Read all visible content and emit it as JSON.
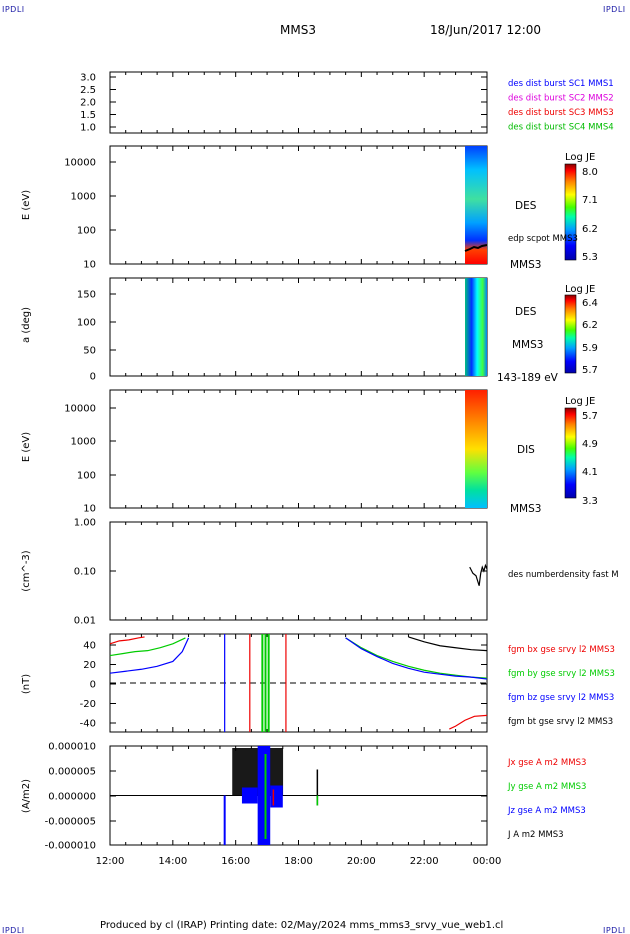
{
  "header": {
    "corner_label": "IPDLI",
    "spacecraft": "MMS3",
    "datetime": "18/Jun/2017 12:00"
  },
  "footer": {
    "text": "Produced by cl (IRAP)   Printing date: 02/May/2024   mms_mms3_srvy_vue_web1.cl"
  },
  "colors": {
    "mms1": "#0000ff",
    "mms2": "#dd00dd",
    "mms3": "#ee0000",
    "mms4": "#00bb00",
    "bx": "#ee0000",
    "by": "#00cc00",
    "bz": "#0000ff",
    "bt": "#000000"
  },
  "chart_data": [
    {
      "type": "line",
      "panel": "burst-flags",
      "ylabel": "",
      "yticks": [
        "3.0",
        "2.5",
        "2.0",
        "1.5",
        "1.0"
      ],
      "ylim": [
        0.8,
        3.2
      ],
      "legend": [
        {
          "label": "des dist burst SC1 MMS1",
          "color": "#0000ff"
        },
        {
          "label": "des dist burst SC2 MMS2",
          "color": "#dd00dd"
        },
        {
          "label": "des dist burst SC3 MMS3",
          "color": "#ee0000"
        },
        {
          "label": "des dist burst SC4 MMS4",
          "color": "#00bb00"
        }
      ]
    },
    {
      "type": "heatmap",
      "panel": "des-energy",
      "ylabel": "E (eV)",
      "yscale": "log",
      "yticks": [
        "10000",
        "1000",
        "100",
        "10"
      ],
      "ylim": [
        10,
        30000
      ],
      "data_start_hour": 23.4,
      "instrument": "DES",
      "overlay": "edp scpot MMS3",
      "bottom_label": "MMS3",
      "colorbar": {
        "title": "Log JE",
        "ticks": [
          "8.0",
          "7.1",
          "6.2",
          "5.3"
        ],
        "range": [
          5.3,
          8.0
        ]
      }
    },
    {
      "type": "heatmap",
      "panel": "des-pitch",
      "ylabel": "a (deg)",
      "yticks": [
        "150",
        "100",
        "50",
        "0"
      ],
      "ylim": [
        0,
        180
      ],
      "data_start_hour": 23.4,
      "instrument": "DES",
      "spacecraft": "MMS3",
      "bottom_label": "143-189 eV",
      "colorbar": {
        "title": "Log JE",
        "ticks": [
          "6.4",
          "6.2",
          "5.9",
          "5.7"
        ],
        "range": [
          5.7,
          6.4
        ]
      }
    },
    {
      "type": "heatmap",
      "panel": "dis-energy",
      "ylabel": "E (eV)",
      "yscale": "log",
      "yticks": [
        "10000",
        "1000",
        "100",
        "10"
      ],
      "ylim": [
        10,
        30000
      ],
      "data_start_hour": 23.4,
      "instrument": "DIS",
      "bottom_label": "MMS3",
      "colorbar": {
        "title": "Log JE",
        "ticks": [
          "5.7",
          "4.9",
          "4.1",
          "3.3"
        ],
        "range": [
          3.3,
          5.7
        ]
      }
    },
    {
      "type": "line",
      "panel": "density",
      "ylabel": "(cm^-3)",
      "yscale": "log",
      "yticks": [
        "1.00",
        "0.10",
        "0.01"
      ],
      "ylim": [
        0.01,
        1.0
      ],
      "legend": [
        {
          "label": "des numberdensity fast M",
          "color": "#000000"
        }
      ],
      "series": [
        {
          "name": "des numberdensity fast M",
          "x": [
            23.45,
            23.55,
            23.65,
            23.75,
            23.8,
            23.85,
            23.9,
            23.95,
            24.0
          ],
          "y": [
            0.12,
            0.09,
            0.08,
            0.05,
            0.09,
            0.12,
            0.1,
            0.13,
            0.11
          ]
        }
      ]
    },
    {
      "type": "line",
      "panel": "fgm",
      "ylabel": "(nT)",
      "yticks": [
        "40",
        "20",
        "0",
        "-20",
        "-40"
      ],
      "ylim": [
        -50,
        50
      ],
      "legend": [
        {
          "label": "fgm bx gse srvy l2 MMS3",
          "color": "#ee0000"
        },
        {
          "label": "fgm by gse srvy l2 MMS3",
          "color": "#00cc00"
        },
        {
          "label": "fgm bz gse srvy l2 MMS3",
          "color": "#0000ff"
        },
        {
          "label": "fgm bt gse srvy l2 MMS3",
          "color": "#000000"
        }
      ],
      "series": [
        {
          "name": "fgm bx gse srvy l2 MMS3",
          "x": [
            12.0,
            12.3,
            12.6,
            12.9,
            13.1,
            22.8,
            23.0,
            23.3,
            23.6,
            24.0
          ],
          "y": [
            40,
            43,
            44,
            46,
            47,
            -47,
            -44,
            -38,
            -34,
            -33
          ]
        },
        {
          "name": "fgm by gse srvy l2 MMS3",
          "x": [
            12.0,
            12.4,
            12.8,
            13.2,
            13.6,
            14.0,
            14.4,
            19.5,
            20.0,
            20.5,
            21.0,
            21.5,
            22.0,
            22.5,
            23.0,
            23.5,
            24.0
          ],
          "y": [
            28,
            30,
            32,
            33,
            36,
            40,
            46,
            46,
            36,
            28,
            22,
            17,
            13,
            10,
            8,
            6,
            5
          ]
        },
        {
          "name": "fgm bz gse srvy l2 MMS3",
          "x": [
            12.0,
            12.5,
            13.0,
            13.5,
            14.0,
            14.3,
            14.5,
            19.5,
            20.0,
            20.5,
            21.0,
            21.5,
            22.0,
            22.5,
            23.0,
            23.5,
            24.0
          ],
          "y": [
            10,
            12,
            14,
            17,
            22,
            32,
            46,
            46,
            35,
            27,
            20,
            15,
            11,
            9,
            7,
            6,
            4
          ]
        },
        {
          "name": "fgm bt gse srvy l2 MMS3",
          "x": [
            21.5,
            22.0,
            22.5,
            23.0,
            23.5,
            24.0
          ],
          "y": [
            47,
            42,
            38,
            36,
            34,
            33
          ]
        }
      ]
    },
    {
      "type": "line",
      "panel": "current",
      "ylabel": "(A/m2)",
      "yticks": [
        "0.000010",
        "0.000005",
        "0.000000",
        "-0.000005",
        "-0.000010"
      ],
      "ylim": [
        -1e-05,
        1e-05
      ],
      "legend": [
        {
          "label": "Jx gse A m2 MMS3",
          "color": "#ee0000"
        },
        {
          "label": "Jy gse A m2 MMS3",
          "color": "#00cc00"
        },
        {
          "label": "Jz gse A m2 MMS3",
          "color": "#0000ff"
        },
        {
          "label": "J A m2 MMS3",
          "color": "#000000"
        }
      ],
      "active_interval_hours": [
        15.7,
        17.7
      ],
      "xticks": [
        "12:00",
        "14:00",
        "16:00",
        "18:00",
        "20:00",
        "22:00",
        "00:00"
      ],
      "xlim_hours": [
        12,
        24
      ]
    }
  ]
}
